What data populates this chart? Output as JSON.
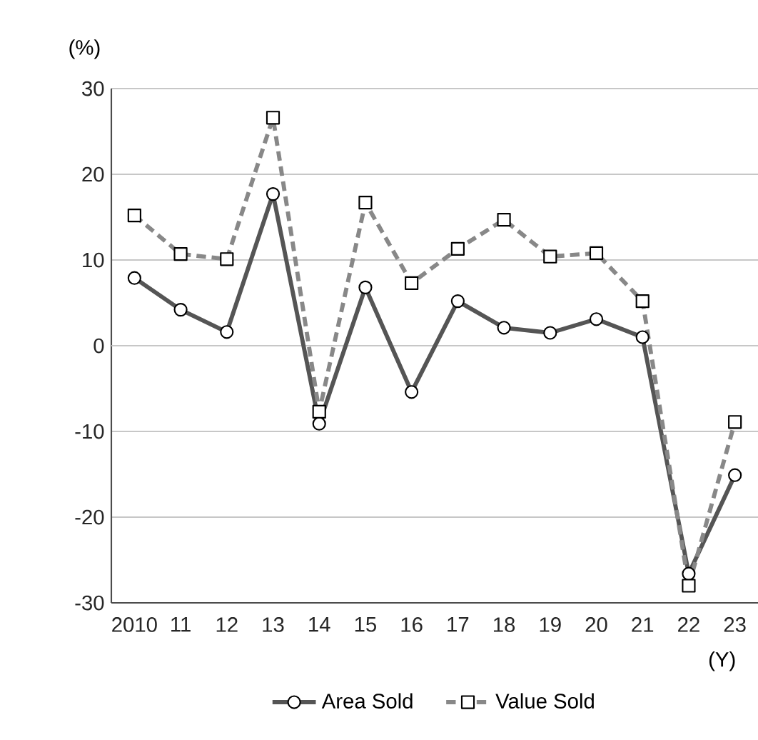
{
  "chart_data": {
    "type": "line",
    "xlabel": "(Y)",
    "ylabel": "(%)",
    "categories": [
      "2010",
      "11",
      "12",
      "13",
      "14",
      "15",
      "16",
      "17",
      "18",
      "19",
      "20",
      "21",
      "22",
      "23"
    ],
    "series": [
      {
        "name": "Area Sold",
        "color": "#555555",
        "marker": "circle",
        "line_style": "solid",
        "values": [
          7.9,
          4.2,
          1.6,
          17.7,
          -9.1,
          6.8,
          -5.4,
          5.2,
          2.1,
          1.5,
          3.1,
          1.0,
          -26.6,
          -15.1
        ]
      },
      {
        "name": "Value Sold",
        "color": "#888888",
        "marker": "square",
        "line_style": "dashed",
        "values": [
          15.2,
          10.7,
          10.1,
          26.6,
          -7.7,
          16.7,
          7.3,
          11.3,
          14.7,
          10.4,
          10.8,
          5.2,
          -28.0,
          -8.9
        ]
      }
    ],
    "ylim": [
      -30,
      30
    ],
    "yticks": [
      -30,
      -20,
      -10,
      0,
      10,
      20,
      30
    ],
    "grid": "y",
    "legend": "bottom"
  }
}
